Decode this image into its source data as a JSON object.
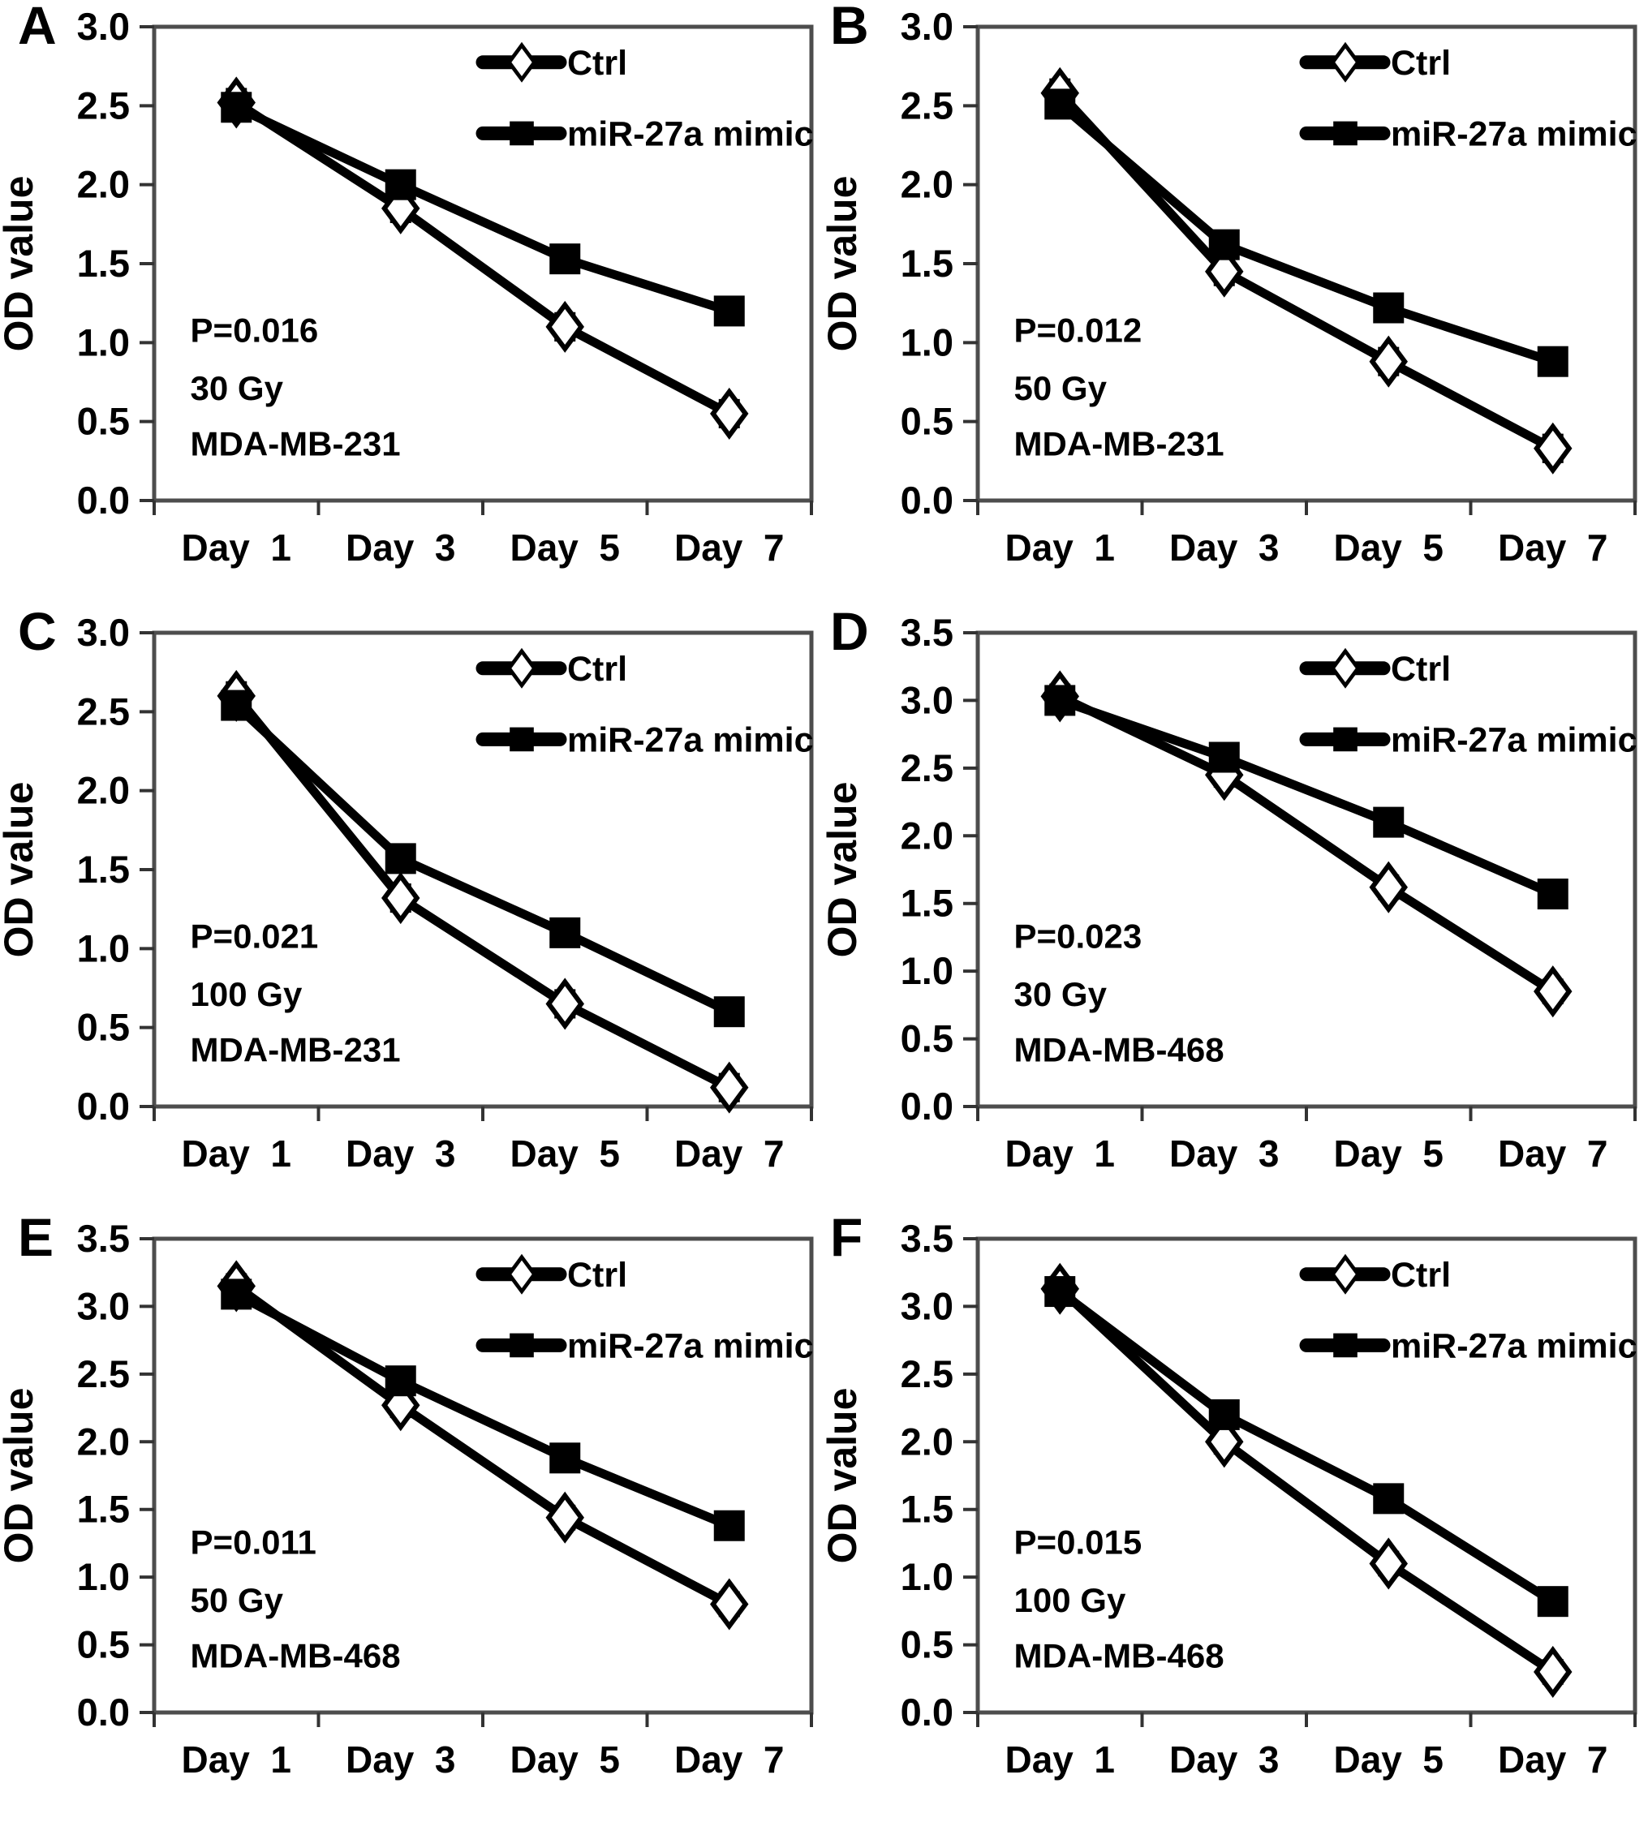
{
  "figure": {
    "y_axis_label": "OD value",
    "series_color": "#000000",
    "border_color": "#4d4d4d",
    "background": "#ffffff"
  },
  "legend": {
    "entries": [
      "Ctrl",
      "miR-27a mimic"
    ],
    "position": "top-right"
  },
  "chart_data": [
    {
      "type": "line",
      "panel": "A",
      "categories": [
        "Day  1",
        "Day  3",
        "Day  5",
        "Day  7"
      ],
      "series": [
        {
          "name": "Ctrl",
          "marker": "diamond",
          "values": [
            2.52,
            1.85,
            1.1,
            0.55
          ]
        },
        {
          "name": "miR-27a mimic",
          "marker": "square",
          "values": [
            2.49,
            2.0,
            1.53,
            1.2
          ]
        }
      ],
      "annotations": {
        "p_value": "P=0.016",
        "dose": "30 Gy",
        "cell_line": "MDA-MB-231"
      },
      "ylabel": "OD value",
      "ylim": [
        0,
        3.0
      ],
      "ytick_step": 0.5,
      "error_bar": 0.08,
      "grid": false,
      "legend_position": "top-right"
    },
    {
      "type": "line",
      "panel": "B",
      "categories": [
        "Day  1",
        "Day  3",
        "Day  5",
        "Day  7"
      ],
      "series": [
        {
          "name": "Ctrl",
          "marker": "diamond",
          "values": [
            2.58,
            1.45,
            0.88,
            0.33
          ]
        },
        {
          "name": "miR-27a mimic",
          "marker": "square",
          "values": [
            2.51,
            1.62,
            1.22,
            0.88
          ]
        }
      ],
      "annotations": {
        "p_value": "P=0.012",
        "dose": "50 Gy",
        "cell_line": "MDA-MB-231"
      },
      "ylabel": "OD value",
      "ylim": [
        0,
        3.0
      ],
      "ytick_step": 0.5,
      "error_bar": 0.08,
      "grid": false,
      "legend_position": "top-right"
    },
    {
      "type": "line",
      "panel": "C",
      "categories": [
        "Day  1",
        "Day  3",
        "Day  5",
        "Day  7"
      ],
      "series": [
        {
          "name": "Ctrl",
          "marker": "diamond",
          "values": [
            2.6,
            1.32,
            0.65,
            0.12
          ]
        },
        {
          "name": "miR-27a mimic",
          "marker": "square",
          "values": [
            2.54,
            1.57,
            1.1,
            0.6
          ]
        }
      ],
      "annotations": {
        "p_value": "P=0.021",
        "dose": "100 Gy",
        "cell_line": "MDA-MB-231"
      },
      "ylabel": "OD value",
      "ylim": [
        0,
        3.0
      ],
      "ytick_step": 0.5,
      "error_bar": 0.08,
      "grid": false,
      "legend_position": "top-right"
    },
    {
      "type": "line",
      "panel": "D",
      "categories": [
        "Day  1",
        "Day  3",
        "Day  5",
        "Day  7"
      ],
      "series": [
        {
          "name": "Ctrl",
          "marker": "diamond",
          "values": [
            3.03,
            2.45,
            1.62,
            0.85
          ]
        },
        {
          "name": "miR-27a mimic",
          "marker": "square",
          "values": [
            3.0,
            2.58,
            2.1,
            1.57
          ]
        }
      ],
      "annotations": {
        "p_value": "P=0.023",
        "dose": "30 Gy",
        "cell_line": "MDA-MB-468"
      },
      "ylabel": "OD value",
      "ylim": [
        0,
        3.5
      ],
      "ytick_step": 0.5,
      "error_bar": 0.08,
      "grid": false,
      "legend_position": "top-right"
    },
    {
      "type": "line",
      "panel": "E",
      "categories": [
        "Day  1",
        "Day  3",
        "Day  5",
        "Day  7"
      ],
      "series": [
        {
          "name": "Ctrl",
          "marker": "diamond",
          "values": [
            3.15,
            2.27,
            1.44,
            0.8
          ]
        },
        {
          "name": "miR-27a mimic",
          "marker": "square",
          "values": [
            3.09,
            2.45,
            1.88,
            1.38
          ]
        }
      ],
      "annotations": {
        "p_value": "P=0.011",
        "dose": "50 Gy",
        "cell_line": "MDA-MB-468"
      },
      "ylabel": "OD value",
      "ylim": [
        0,
        3.5
      ],
      "ytick_step": 0.5,
      "error_bar": 0.08,
      "grid": false,
      "legend_position": "top-right"
    },
    {
      "type": "line",
      "panel": "F",
      "categories": [
        "Day  1",
        "Day  3",
        "Day  5",
        "Day  7"
      ],
      "series": [
        {
          "name": "Ctrl",
          "marker": "diamond",
          "values": [
            3.13,
            2.0,
            1.1,
            0.3
          ]
        },
        {
          "name": "miR-27a mimic",
          "marker": "square",
          "values": [
            3.11,
            2.2,
            1.58,
            0.82
          ]
        }
      ],
      "annotations": {
        "p_value": "P=0.015",
        "dose": "100 Gy",
        "cell_line": "MDA-MB-468"
      },
      "ylabel": "OD value",
      "ylim": [
        0,
        3.5
      ],
      "ytick_step": 0.5,
      "error_bar": 0.08,
      "grid": false,
      "legend_position": "top-right"
    }
  ]
}
